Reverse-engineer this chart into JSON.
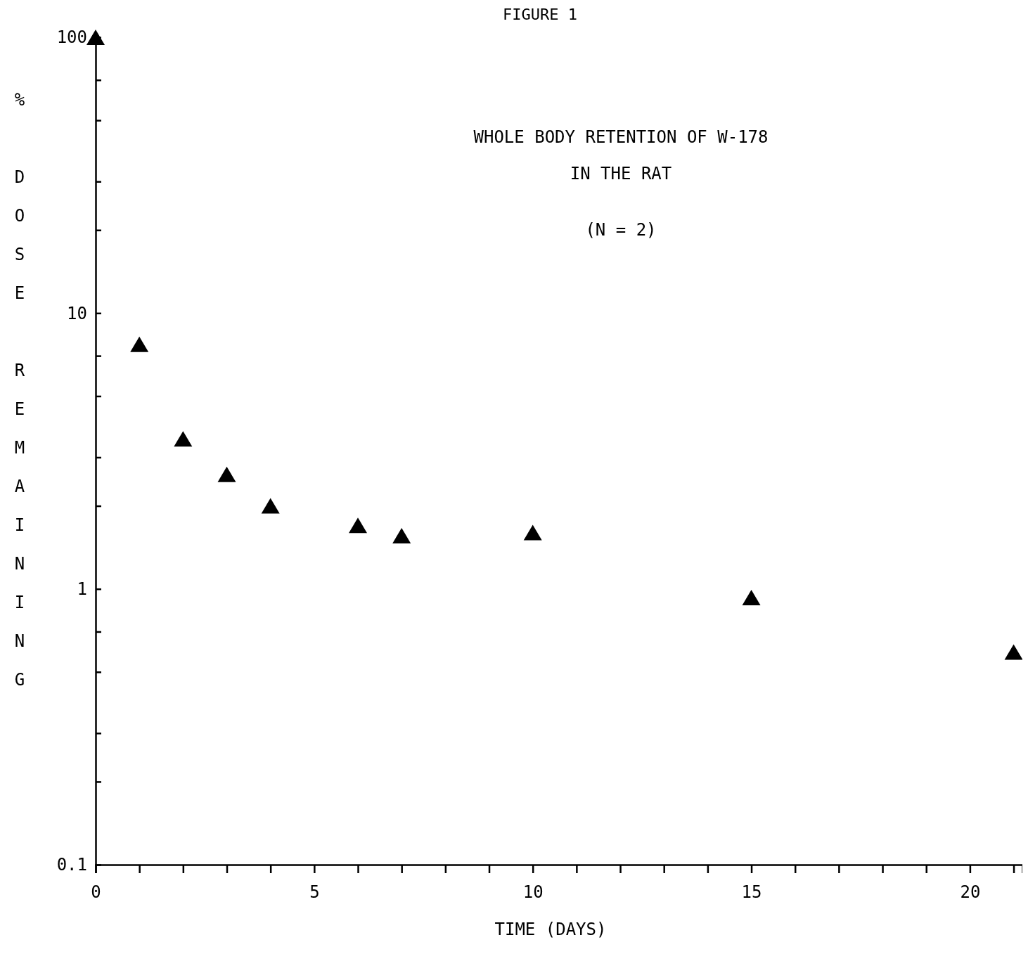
{
  "chart_data": {
    "type": "scatter",
    "title": "WHOLE BODY RETENTION OF W-178\nIN THE RAT",
    "subtitle": "(N = 2)",
    "annotations": [
      "FIGURE 1"
    ],
    "xlabel": "TIME (DAYS)",
    "ylabel": "% DOSE REMAINING",
    "x": [
      0,
      1,
      2,
      3,
      4,
      6,
      7,
      10,
      15,
      21
    ],
    "series": [
      {
        "color": "#000000",
        "values": [
          100,
          7.7,
          3.5,
          2.6,
          2.0,
          1.7,
          1.56,
          1.6,
          0.93,
          0.59
        ]
      }
    ],
    "log": "y",
    "marker": "triangle",
    "grid": false,
    "legend": false,
    "xlim": [
      0,
      21.2
    ],
    "ylim": [
      0.1,
      100
    ],
    "xticks": [
      0,
      {
        "value": 1,
        "label": null
      },
      {
        "value": 2,
        "label": null
      },
      {
        "value": 3,
        "label": null
      },
      {
        "value": 4,
        "label": null
      },
      5,
      {
        "value": 6,
        "label": null
      },
      {
        "value": 7,
        "label": null
      },
      {
        "value": 8,
        "label": null
      },
      {
        "value": 9,
        "label": null
      },
      10,
      {
        "value": 11,
        "label": null
      },
      {
        "value": 12,
        "label": null
      },
      {
        "value": 13,
        "label": null
      },
      {
        "value": 14,
        "label": null
      },
      15,
      {
        "value": 16,
        "label": null
      },
      {
        "value": 17,
        "label": null
      },
      {
        "value": 18,
        "label": null
      },
      {
        "value": 19,
        "label": null
      },
      20,
      {
        "value": 21,
        "label": null
      }
    ],
    "yticks": [
      {
        "value": 0.1,
        "label": "0.1"
      },
      {
        "value": 0.2,
        "label": null
      },
      {
        "value": 0.3,
        "label": null
      },
      {
        "value": 0.5,
        "label": null
      },
      {
        "value": 0.7,
        "label": null
      },
      1,
      {
        "value": 2,
        "label": null
      },
      {
        "value": 3,
        "label": null
      },
      {
        "value": 5,
        "label": null
      },
      {
        "value": 7,
        "label": null
      },
      10,
      {
        "value": 20,
        "label": null
      },
      {
        "value": 30,
        "label": null
      },
      {
        "value": 50,
        "label": null
      },
      {
        "value": 70,
        "label": null
      },
      100
    ]
  }
}
